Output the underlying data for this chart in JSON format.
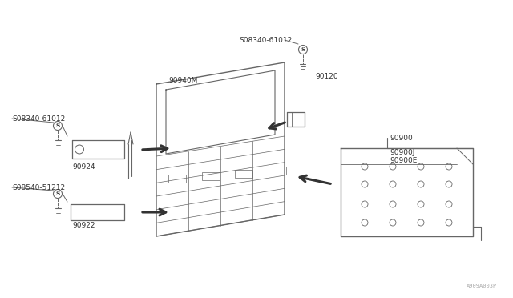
{
  "bg_color": "#ffffff",
  "line_color": "#666666",
  "dark_color": "#333333",
  "text_color": "#333333",
  "watermark": "A909A003P",
  "labels": {
    "s08340_top": "S08340-61012",
    "s08340_left": "S08340-61012",
    "s08540": "S08540-51212",
    "part_90120": "90120",
    "part_90940M": "90940M",
    "part_90924": "90924",
    "part_90922": "90922",
    "part_90900": "90900",
    "part_90900J": "90900J",
    "part_90900E": "90900E"
  },
  "font_size": 6.5,
  "small_font": 5.5
}
